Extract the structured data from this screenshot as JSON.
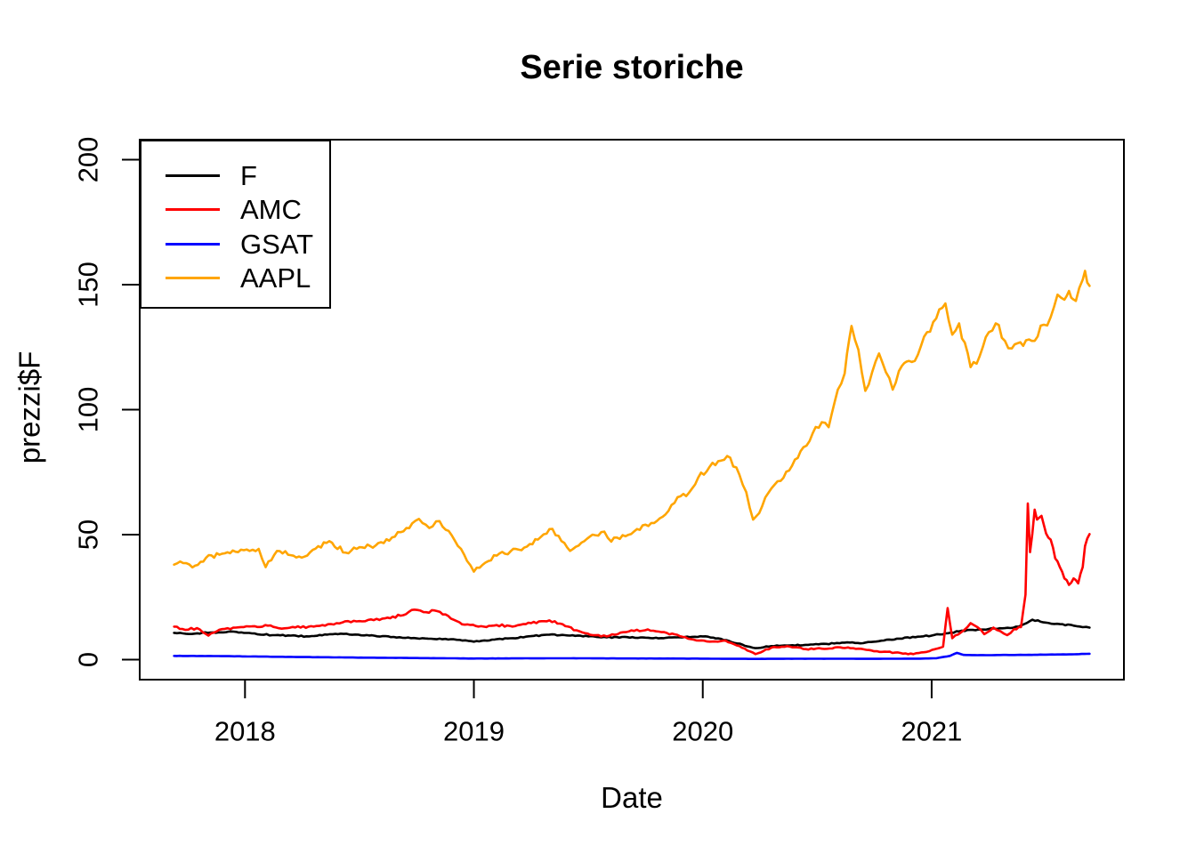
{
  "figure": {
    "title": "Serie storiche",
    "xlabel": "Date",
    "ylabel": "prezzi$F"
  },
  "chart_data": {
    "type": "line",
    "title": "Serie storiche",
    "xlabel": "Date",
    "ylabel": "prezzi$F",
    "grid": false,
    "legend_position": "topleft",
    "x_unit": "decimal year",
    "x_ticks": [
      2018,
      2019,
      2020,
      2021
    ],
    "y_ticks": [
      0,
      50,
      100,
      150,
      200
    ],
    "xlim": [
      2017.54,
      2021.84
    ],
    "ylim": [
      -8,
      208
    ],
    "series": [
      {
        "name": "F",
        "color": "#000000",
        "points": [
          [
            2017.69,
            10.7
          ],
          [
            2017.78,
            10.4
          ],
          [
            2017.86,
            10.9
          ],
          [
            2017.95,
            11.2
          ],
          [
            2018.03,
            10.5
          ],
          [
            2018.12,
            9.8
          ],
          [
            2018.2,
            9.6
          ],
          [
            2018.28,
            9.3
          ],
          [
            2018.36,
            10.0
          ],
          [
            2018.43,
            10.3
          ],
          [
            2018.52,
            9.7
          ],
          [
            2018.6,
            9.4
          ],
          [
            2018.7,
            8.7
          ],
          [
            2018.8,
            8.4
          ],
          [
            2018.9,
            8.2
          ],
          [
            2019.0,
            7.2
          ],
          [
            2019.08,
            8.0
          ],
          [
            2019.17,
            8.6
          ],
          [
            2019.25,
            9.4
          ],
          [
            2019.33,
            10.0
          ],
          [
            2019.42,
            9.6
          ],
          [
            2019.5,
            9.3
          ],
          [
            2019.58,
            8.9
          ],
          [
            2019.67,
            9.0
          ],
          [
            2019.75,
            8.8
          ],
          [
            2019.83,
            8.6
          ],
          [
            2019.92,
            9.0
          ],
          [
            2020.0,
            9.3
          ],
          [
            2020.08,
            8.3
          ],
          [
            2020.15,
            6.5
          ],
          [
            2020.23,
            4.6
          ],
          [
            2020.3,
            5.4
          ],
          [
            2020.38,
            5.7
          ],
          [
            2020.46,
            5.9
          ],
          [
            2020.54,
            6.3
          ],
          [
            2020.62,
            6.8
          ],
          [
            2020.7,
            6.6
          ],
          [
            2020.78,
            7.6
          ],
          [
            2020.86,
            8.4
          ],
          [
            2020.94,
            9.2
          ],
          [
            2021.0,
            9.6
          ],
          [
            2021.06,
            10.5
          ],
          [
            2021.12,
            11.3
          ],
          [
            2021.18,
            11.9
          ],
          [
            2021.25,
            12.3
          ],
          [
            2021.32,
            12.6
          ],
          [
            2021.38,
            13.2
          ],
          [
            2021.44,
            16.0
          ],
          [
            2021.5,
            14.8
          ],
          [
            2021.56,
            14.2
          ],
          [
            2021.62,
            13.6
          ],
          [
            2021.66,
            13.0
          ],
          [
            2021.69,
            12.8
          ]
        ]
      },
      {
        "name": "AMC",
        "color": "#ff0000",
        "points": [
          [
            2017.69,
            13.2
          ],
          [
            2017.74,
            11.9
          ],
          [
            2017.79,
            12.6
          ],
          [
            2017.84,
            9.6
          ],
          [
            2017.9,
            12.2
          ],
          [
            2017.96,
            12.8
          ],
          [
            2018.03,
            13.3
          ],
          [
            2018.1,
            13.6
          ],
          [
            2018.16,
            12.4
          ],
          [
            2018.22,
            12.9
          ],
          [
            2018.3,
            13.2
          ],
          [
            2018.4,
            14.6
          ],
          [
            2018.5,
            15.4
          ],
          [
            2018.6,
            16.4
          ],
          [
            2018.68,
            17.6
          ],
          [
            2018.74,
            20.0
          ],
          [
            2018.78,
            19.0
          ],
          [
            2018.84,
            19.4
          ],
          [
            2018.9,
            16.4
          ],
          [
            2018.96,
            14.0
          ],
          [
            2019.02,
            13.2
          ],
          [
            2019.1,
            13.8
          ],
          [
            2019.18,
            13.4
          ],
          [
            2019.25,
            14.6
          ],
          [
            2019.33,
            15.7
          ],
          [
            2019.4,
            13.4
          ],
          [
            2019.46,
            11.4
          ],
          [
            2019.52,
            9.8
          ],
          [
            2019.58,
            9.3
          ],
          [
            2019.64,
            10.8
          ],
          [
            2019.7,
            11.5
          ],
          [
            2019.76,
            12.1
          ],
          [
            2019.82,
            11.0
          ],
          [
            2019.9,
            9.4
          ],
          [
            2019.96,
            8.0
          ],
          [
            2020.03,
            7.2
          ],
          [
            2020.1,
            7.6
          ],
          [
            2020.16,
            5.4
          ],
          [
            2020.23,
            2.2
          ],
          [
            2020.3,
            4.8
          ],
          [
            2020.38,
            5.2
          ],
          [
            2020.45,
            4.2
          ],
          [
            2020.52,
            4.4
          ],
          [
            2020.6,
            4.9
          ],
          [
            2020.68,
            4.4
          ],
          [
            2020.76,
            3.4
          ],
          [
            2020.84,
            2.8
          ],
          [
            2020.92,
            2.2
          ],
          [
            2020.99,
            3.4
          ],
          [
            2021.05,
            5.2
          ],
          [
            2021.07,
            20.6
          ],
          [
            2021.09,
            8.6
          ],
          [
            2021.13,
            11.0
          ],
          [
            2021.17,
            14.6
          ],
          [
            2021.2,
            13.0
          ],
          [
            2021.23,
            10.2
          ],
          [
            2021.27,
            12.8
          ],
          [
            2021.3,
            11.4
          ],
          [
            2021.33,
            9.8
          ],
          [
            2021.36,
            12.2
          ],
          [
            2021.39,
            13.0
          ],
          [
            2021.41,
            26.0
          ],
          [
            2021.42,
            62.5
          ],
          [
            2021.43,
            43.0
          ],
          [
            2021.45,
            60.0
          ],
          [
            2021.46,
            56.0
          ],
          [
            2021.48,
            57.5
          ],
          [
            2021.5,
            50.5
          ],
          [
            2021.52,
            48.0
          ],
          [
            2021.54,
            40.5
          ],
          [
            2021.56,
            37.0
          ],
          [
            2021.58,
            32.5
          ],
          [
            2021.6,
            29.9
          ],
          [
            2021.62,
            32.5
          ],
          [
            2021.64,
            30.5
          ],
          [
            2021.66,
            37.0
          ],
          [
            2021.67,
            45.5
          ],
          [
            2021.69,
            50.2
          ]
        ]
      },
      {
        "name": "GSAT",
        "color": "#0000ff",
        "points": [
          [
            2017.69,
            1.5
          ],
          [
            2017.85,
            1.45
          ],
          [
            2018.0,
            1.3
          ],
          [
            2018.2,
            1.1
          ],
          [
            2018.4,
            0.9
          ],
          [
            2018.6,
            0.75
          ],
          [
            2018.8,
            0.6
          ],
          [
            2019.0,
            0.45
          ],
          [
            2019.2,
            0.5
          ],
          [
            2019.4,
            0.55
          ],
          [
            2019.6,
            0.5
          ],
          [
            2019.8,
            0.45
          ],
          [
            2020.0,
            0.4
          ],
          [
            2020.2,
            0.3
          ],
          [
            2020.4,
            0.35
          ],
          [
            2020.6,
            0.35
          ],
          [
            2020.8,
            0.35
          ],
          [
            2020.95,
            0.4
          ],
          [
            2021.02,
            0.55
          ],
          [
            2021.08,
            1.5
          ],
          [
            2021.11,
            2.7
          ],
          [
            2021.14,
            1.9
          ],
          [
            2021.2,
            1.8
          ],
          [
            2021.3,
            1.85
          ],
          [
            2021.4,
            1.9
          ],
          [
            2021.5,
            2.0
          ],
          [
            2021.6,
            2.1
          ],
          [
            2021.69,
            2.35
          ]
        ]
      },
      {
        "name": "AAPL",
        "color": "#ffa500",
        "points": [
          [
            2017.69,
            38.0
          ],
          [
            2017.73,
            38.6
          ],
          [
            2017.77,
            36.9
          ],
          [
            2017.83,
            40.8
          ],
          [
            2017.9,
            42.4
          ],
          [
            2017.97,
            43.0
          ],
          [
            2018.02,
            43.5
          ],
          [
            2018.06,
            44.3
          ],
          [
            2018.09,
            37.0
          ],
          [
            2018.14,
            43.5
          ],
          [
            2018.2,
            41.8
          ],
          [
            2018.26,
            41.2
          ],
          [
            2018.32,
            45.4
          ],
          [
            2018.38,
            46.8
          ],
          [
            2018.44,
            42.8
          ],
          [
            2018.5,
            45.0
          ],
          [
            2018.57,
            45.6
          ],
          [
            2018.63,
            47.6
          ],
          [
            2018.68,
            51.0
          ],
          [
            2018.73,
            54.5
          ],
          [
            2018.76,
            56.3
          ],
          [
            2018.79,
            54.0
          ],
          [
            2018.82,
            53.3
          ],
          [
            2018.85,
            55.4
          ],
          [
            2018.89,
            51.5
          ],
          [
            2018.93,
            45.5
          ],
          [
            2018.97,
            39.5
          ],
          [
            2019.0,
            35.2
          ],
          [
            2019.05,
            38.8
          ],
          [
            2019.1,
            41.6
          ],
          [
            2019.16,
            43.3
          ],
          [
            2019.22,
            44.8
          ],
          [
            2019.28,
            48.0
          ],
          [
            2019.33,
            52.2
          ],
          [
            2019.37,
            49.5
          ],
          [
            2019.42,
            43.5
          ],
          [
            2019.47,
            46.8
          ],
          [
            2019.53,
            49.8
          ],
          [
            2019.57,
            51.2
          ],
          [
            2019.6,
            47.2
          ],
          [
            2019.65,
            49.8
          ],
          [
            2019.7,
            51.3
          ],
          [
            2019.75,
            54.0
          ],
          [
            2019.8,
            55.5
          ],
          [
            2019.85,
            59.5
          ],
          [
            2019.89,
            65.0
          ],
          [
            2019.94,
            66.8
          ],
          [
            2019.98,
            72.8
          ],
          [
            2020.03,
            77.2
          ],
          [
            2020.08,
            79.6
          ],
          [
            2020.12,
            80.8
          ],
          [
            2020.16,
            74.0
          ],
          [
            2020.19,
            67.0
          ],
          [
            2020.22,
            56.0
          ],
          [
            2020.26,
            61.5
          ],
          [
            2020.3,
            68.5
          ],
          [
            2020.34,
            71.5
          ],
          [
            2020.39,
            77.5
          ],
          [
            2020.44,
            85.0
          ],
          [
            2020.48,
            90.5
          ],
          [
            2020.52,
            95.0
          ],
          [
            2020.55,
            93.0
          ],
          [
            2020.59,
            108.0
          ],
          [
            2020.62,
            114.5
          ],
          [
            2020.65,
            133.5
          ],
          [
            2020.68,
            124.0
          ],
          [
            2020.71,
            107.5
          ],
          [
            2020.74,
            115.0
          ],
          [
            2020.77,
            122.5
          ],
          [
            2020.8,
            115.0
          ],
          [
            2020.83,
            108.0
          ],
          [
            2020.87,
            117.5
          ],
          [
            2020.9,
            119.5
          ],
          [
            2020.94,
            122.0
          ],
          [
            2020.98,
            131.0
          ],
          [
            2021.02,
            136.5
          ],
          [
            2021.06,
            142.5
          ],
          [
            2021.09,
            130.0
          ],
          [
            2021.12,
            134.5
          ],
          [
            2021.17,
            117.0
          ],
          [
            2021.21,
            121.5
          ],
          [
            2021.25,
            131.0
          ],
          [
            2021.28,
            134.5
          ],
          [
            2021.32,
            127.5
          ],
          [
            2021.35,
            124.5
          ],
          [
            2021.4,
            125.5
          ],
          [
            2021.45,
            127.5
          ],
          [
            2021.49,
            134.0
          ],
          [
            2021.52,
            137.0
          ],
          [
            2021.55,
            146.0
          ],
          [
            2021.58,
            144.0
          ],
          [
            2021.6,
            147.5
          ],
          [
            2021.63,
            143.5
          ],
          [
            2021.66,
            152.0
          ],
          [
            2021.67,
            155.5
          ],
          [
            2021.69,
            149.5
          ]
        ]
      }
    ]
  }
}
